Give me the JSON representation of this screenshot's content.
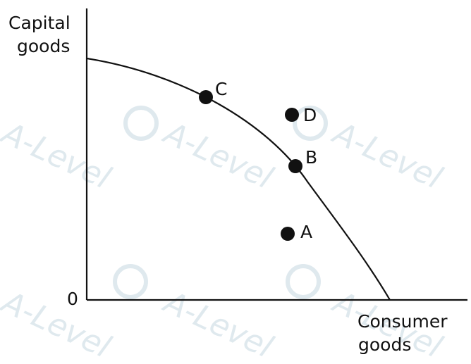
{
  "diagram": {
    "y_axis_label": [
      "Capital",
      "goods"
    ],
    "x_axis_label": [
      "Consumer",
      "goods"
    ],
    "origin_label": "0",
    "curve": "production-possibility-frontier",
    "points": [
      {
        "id": "C",
        "label": "C",
        "position": "on-curve"
      },
      {
        "id": "D",
        "label": "D",
        "position": "outside-curve"
      },
      {
        "id": "B",
        "label": "B",
        "position": "on-curve"
      },
      {
        "id": "A",
        "label": "A",
        "position": "inside-curve"
      }
    ],
    "colors": {
      "ink": "#111111",
      "watermark": "#dfe9ee"
    }
  },
  "watermark": {
    "text": "A-Level",
    "icon": "a-level-logo-icon"
  }
}
